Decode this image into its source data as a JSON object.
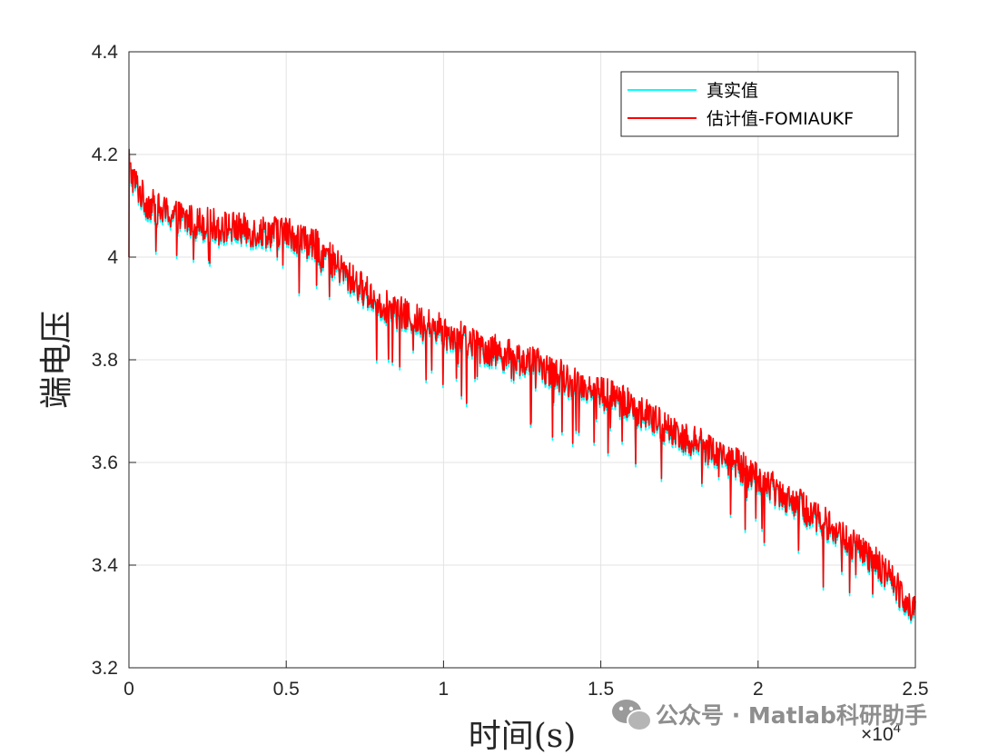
{
  "chart_data": {
    "type": "line",
    "xlabel": "时间(s)",
    "ylabel": "端电压",
    "x_exponent_label": "×10",
    "x_exponent_power": "4",
    "xlim": [
      0,
      2.5
    ],
    "ylim": [
      3.2,
      4.4
    ],
    "x_ticks": [
      "0",
      "0.5",
      "1",
      "1.5",
      "2",
      "2.5"
    ],
    "y_ticks": [
      "3.2",
      "3.4",
      "3.6",
      "3.8",
      "4",
      "4.2",
      "4.4"
    ],
    "grid": true,
    "legend_position": "top-right",
    "series": [
      {
        "name": "真实值",
        "color": "#00FFFF",
        "x": [
          0,
          0.05,
          0.1,
          0.2,
          0.3,
          0.4,
          0.5,
          0.6,
          0.7,
          0.8,
          0.9,
          1.0,
          1.1,
          1.2,
          1.3,
          1.4,
          1.5,
          1.6,
          1.7,
          1.8,
          1.9,
          2.0,
          2.1,
          2.2,
          2.3,
          2.4,
          2.5
        ],
        "y": [
          4.17,
          4.11,
          4.09,
          4.07,
          4.06,
          4.05,
          4.05,
          4.02,
          3.96,
          3.91,
          3.88,
          3.86,
          3.83,
          3.81,
          3.79,
          3.76,
          3.74,
          3.71,
          3.67,
          3.64,
          3.61,
          3.57,
          3.53,
          3.49,
          3.44,
          3.39,
          3.31
        ]
      },
      {
        "name": "估计值-FOMIAUKF",
        "color": "#FF0000",
        "x": [
          0,
          0.05,
          0.1,
          0.2,
          0.3,
          0.4,
          0.5,
          0.6,
          0.7,
          0.8,
          0.9,
          1.0,
          1.1,
          1.2,
          1.3,
          1.4,
          1.5,
          1.6,
          1.7,
          1.8,
          1.9,
          2.0,
          2.1,
          2.2,
          2.3,
          2.4,
          2.5
        ],
        "y": [
          4.17,
          4.11,
          4.09,
          4.07,
          4.06,
          4.05,
          4.05,
          4.02,
          3.96,
          3.91,
          3.88,
          3.86,
          3.83,
          3.81,
          3.79,
          3.76,
          3.74,
          3.71,
          3.67,
          3.64,
          3.61,
          3.57,
          3.53,
          3.49,
          3.44,
          3.39,
          3.31
        ]
      }
    ]
  },
  "watermark": {
    "text": "公众号 · Matlab科研助手",
    "icon": "wechat-icon"
  }
}
